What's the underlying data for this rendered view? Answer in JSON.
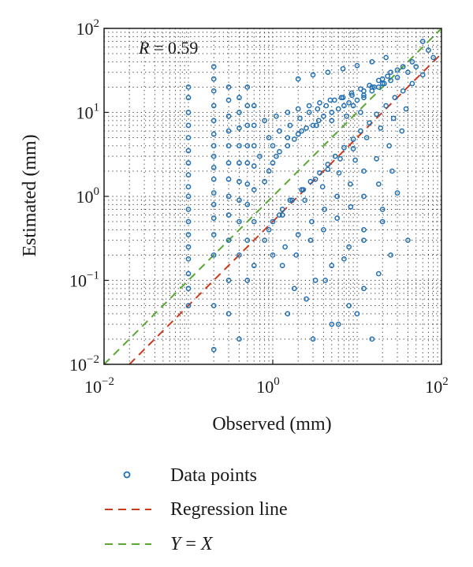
{
  "chart_data": {
    "type": "scatter",
    "title": "",
    "xlabel": "Observed (mm)",
    "ylabel": "Estimated (mm)",
    "x_scale": "log",
    "y_scale": "log",
    "xlim": [
      0.01,
      100
    ],
    "ylim": [
      0.01,
      100
    ],
    "grid": true,
    "grid_style": "dotted",
    "x_ticks": [
      {
        "base": "10",
        "exp": "−2"
      },
      {
        "base": "10",
        "exp": "0"
      },
      {
        "base": "10",
        "exp": "2"
      }
    ],
    "y_ticks": [
      {
        "base": "10",
        "exp": "−2"
      },
      {
        "base": "10",
        "exp": "−1"
      },
      {
        "base": "10",
        "exp": "0"
      },
      {
        "base": "10",
        "exp": "1"
      },
      {
        "base": "10",
        "exp": "2"
      }
    ],
    "annotation": {
      "var": "R",
      "rest": " = 0.59"
    },
    "colors": {
      "points": "#1f6fb5",
      "regression": "#cc3a1d",
      "identity": "#5aa832",
      "grid": "#333333"
    },
    "regression_line": {
      "slope": 1.0,
      "intercept_log10": -0.3
    },
    "legend": {
      "placement": "bottom",
      "items": [
        {
          "key": "points",
          "marker": "circle",
          "label": "Data points"
        },
        {
          "key": "regression",
          "marker": "dashed-line",
          "label": "Regression line"
        },
        {
          "key": "identity",
          "marker": "dashed-line",
          "label_var1": "Y",
          "label_mid": " = ",
          "label_var2": "X"
        }
      ]
    },
    "series": [
      {
        "name": "Data points",
        "x": [
          0.1,
          0.1,
          0.1,
          0.1,
          0.1,
          0.1,
          0.1,
          0.1,
          0.1,
          0.1,
          0.1,
          0.1,
          0.1,
          0.1,
          0.1,
          0.1,
          0.1,
          0.1,
          0.2,
          0.2,
          0.2,
          0.2,
          0.2,
          0.2,
          0.2,
          0.2,
          0.2,
          0.2,
          0.2,
          0.2,
          0.2,
          0.2,
          0.2,
          0.2,
          0.2,
          0.3,
          0.3,
          0.3,
          0.3,
          0.3,
          0.3,
          0.3,
          0.3,
          0.3,
          0.3,
          0.3,
          0.3,
          0.4,
          0.4,
          0.4,
          0.4,
          0.4,
          0.4,
          0.4,
          0.4,
          0.4,
          0.4,
          0.5,
          0.5,
          0.5,
          0.5,
          0.5,
          0.5,
          0.5,
          0.5,
          0.5,
          0.6,
          0.6,
          0.6,
          0.6,
          0.6,
          0.6,
          0.6,
          0.8,
          0.9,
          1.0,
          1.1,
          1.2,
          1.5,
          1.8,
          2.0,
          2.5,
          3.0,
          3.5,
          4.0,
          5.0,
          6.0,
          7.0,
          8.0,
          10,
          12,
          15,
          18,
          20,
          25,
          30,
          40,
          50,
          0.8,
          1.0,
          1.3,
          1.7,
          2.2,
          2.8,
          3.6,
          4.5,
          5.5,
          7.0,
          9.0,
          11,
          14,
          17,
          22,
          28,
          35,
          45,
          60,
          0.9,
          1.2,
          1.6,
          2.1,
          2.7,
          3.4,
          4.3,
          5.4,
          6.8,
          8.6,
          11,
          14,
          18,
          23,
          30,
          1.0,
          1.4,
          2.0,
          2.9,
          4.1,
          5.8,
          8.3,
          12,
          17,
          24,
          34,
          0.8,
          1.1,
          1.5,
          2.0,
          2.7,
          3.6,
          4.8,
          6.5,
          8.7,
          12,
          16,
          21,
          1.3,
          1.9,
          2.8,
          4.0,
          5.8,
          8.4,
          12,
          18,
          26,
          2.0,
          3.0,
          4.5,
          6.8,
          10,
          15,
          22,
          0.7,
          1.0,
          1.5,
          2.2,
          3.3,
          5.0,
          7.5,
          11,
          1.2,
          1.6,
          2.3,
          3.2,
          4.5,
          6.3,
          9.0,
          13,
          19,
          27,
          38,
          60,
          70,
          80,
          45,
          35,
          25,
          20,
          15,
          12,
          9,
          1.8,
          3.2,
          5.0,
          8.0,
          12,
          20,
          30,
          1.5,
          2.5,
          4.2,
          7.0,
          12,
          20,
          5,
          8,
          12,
          18,
          25,
          40,
          3,
          6,
          10,
          15,
          0.9,
          1.3,
          2.4,
          3.9,
          6.1,
          9.5
        ],
        "y": [
          20,
          15,
          10,
          7,
          5,
          3.5,
          2.5,
          1.8,
          1.3,
          1.0,
          0.7,
          0.5,
          0.35,
          0.25,
          0.18,
          0.12,
          0.08,
          0.05,
          35,
          25,
          18,
          12,
          8,
          5.5,
          4,
          3,
          2.2,
          1.6,
          1.1,
          0.8,
          0.55,
          0.35,
          0.2,
          0.05,
          0.015,
          20,
          14,
          9,
          6,
          4,
          2.5,
          1.6,
          1.0,
          0.6,
          0.3,
          0.1,
          0.04,
          15,
          10,
          6.5,
          4,
          2.5,
          1.5,
          0.9,
          0.5,
          0.2,
          0.02,
          20,
          12,
          7,
          4,
          2.5,
          1.4,
          0.8,
          0.3,
          0.1,
          12,
          7,
          4,
          2.3,
          1.2,
          0.5,
          0.15,
          1.5,
          2.0,
          2.5,
          3.0,
          3.4,
          4.0,
          4.8,
          5.5,
          6.5,
          7.0,
          8.0,
          9.0,
          10,
          11,
          12,
          13,
          14,
          16,
          18,
          20,
          22,
          24,
          26,
          30,
          35,
          0.3,
          0.5,
          0.7,
          0.9,
          1.2,
          1.5,
          1.9,
          2.4,
          3.0,
          3.8,
          4.8,
          6.0,
          7.5,
          9.5,
          12,
          15,
          18,
          22,
          28,
          5,
          6,
          7,
          8.5,
          10,
          11,
          12,
          14,
          15,
          17,
          19,
          21,
          24,
          27,
          32,
          0.2,
          0.25,
          0.35,
          0.5,
          0.7,
          1.0,
          1.4,
          2.0,
          2.8,
          4.0,
          6.0,
          8,
          9,
          10,
          11,
          12,
          13,
          14,
          15,
          16,
          18,
          20,
          22,
          0.15,
          0.2,
          0.3,
          0.4,
          0.55,
          0.75,
          1.0,
          1.4,
          2.0,
          25,
          28,
          30,
          33,
          36,
          40,
          45,
          3,
          4,
          5,
          6,
          7,
          8,
          9,
          10,
          0.6,
          0.9,
          1.2,
          1.6,
          2.1,
          2.8,
          3.7,
          5.0,
          6.5,
          8.5,
          11,
          70,
          55,
          45,
          40,
          35,
          30,
          25,
          20,
          15,
          12,
          0.08,
          0.1,
          0.15,
          0.25,
          0.4,
          0.7,
          1.1,
          0.04,
          0.06,
          0.1,
          0.18,
          0.3,
          0.5,
          0.03,
          0.05,
          0.08,
          0.12,
          0.2,
          0.3,
          0.02,
          0.03,
          0.04,
          0.02,
          0.4,
          0.6,
          0.9,
          1.3,
          1.9,
          2.7
        ]
      }
    ]
  }
}
